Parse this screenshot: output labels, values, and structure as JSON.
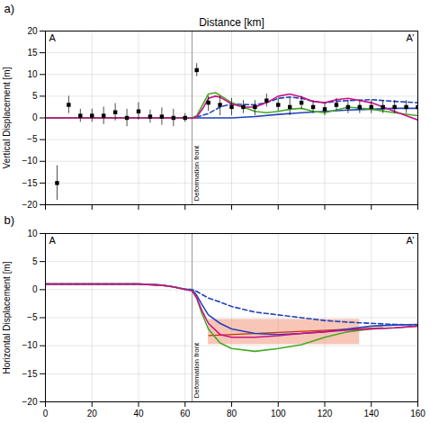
{
  "chart_data": [
    {
      "type": "line",
      "title": "Distance [km]",
      "ylabel": "Vertical Displacement [m]",
      "panel_label": "a)",
      "xlim": [
        0,
        160
      ],
      "xticks": [
        0,
        20,
        40,
        60,
        80,
        100,
        120,
        140,
        160
      ],
      "ylim": [
        -20,
        20
      ],
      "yticks": [
        -20,
        -15,
        -10,
        -5,
        0,
        5,
        10,
        15,
        20
      ],
      "grid": true,
      "tick_labels": "y",
      "reference_lines": [
        {
          "x": 63,
          "color": "#999999",
          "label": "Deformation front"
        }
      ],
      "annotations": [
        {
          "text": "A",
          "anchor": "top-left"
        },
        {
          "text": "A’",
          "anchor": "top-right"
        }
      ],
      "series": [
        {
          "type": "line",
          "color": "#2244bb",
          "line_style": "solid",
          "x": [
            0,
            10,
            20,
            30,
            40,
            50,
            60,
            63,
            65,
            70,
            80,
            90,
            100,
            110,
            120,
            130,
            140,
            150,
            160
          ],
          "values": [
            0,
            0,
            0,
            0,
            0,
            0,
            0,
            0,
            0,
            0,
            0,
            0.3,
            0.8,
            1.2,
            1.5,
            1.8,
            2.0,
            2.2,
            2.2
          ]
        },
        {
          "type": "line",
          "color": "#2244bb",
          "line_style": "dashed",
          "x": [
            0,
            10,
            20,
            30,
            40,
            50,
            60,
            63,
            65,
            70,
            75,
            80,
            90,
            95,
            100,
            105,
            110,
            115,
            120,
            125,
            130,
            140,
            150,
            160
          ],
          "values": [
            0,
            0,
            0,
            0,
            0,
            0,
            0,
            0,
            0.2,
            1.0,
            2.5,
            3.2,
            3.0,
            3.5,
            4.5,
            4.8,
            4.5,
            3.8,
            3.5,
            3.8,
            4.0,
            4.2,
            3.8,
            3.5
          ]
        },
        {
          "type": "line",
          "color": "#44aa22",
          "line_style": "solid",
          "x": [
            0,
            10,
            20,
            30,
            40,
            50,
            60,
            63,
            65,
            68,
            70,
            73,
            75,
            80,
            85,
            90,
            95,
            100,
            105,
            110,
            115,
            120,
            125,
            130,
            140,
            150,
            160
          ],
          "values": [
            0,
            0,
            0,
            0,
            0,
            0,
            0,
            0,
            0.5,
            3.5,
            5.5,
            5.8,
            5.2,
            3.5,
            2.5,
            1.5,
            1.2,
            1.5,
            2.0,
            2.2,
            1.5,
            1.2,
            1.8,
            2.5,
            2.0,
            1.2,
            0.5
          ]
        },
        {
          "type": "line",
          "color": "#cc1188",
          "line_style": "solid",
          "x": [
            0,
            10,
            20,
            30,
            40,
            50,
            60,
            63,
            65,
            68,
            70,
            73,
            75,
            80,
            85,
            90,
            95,
            100,
            105,
            110,
            115,
            120,
            125,
            130,
            140,
            150,
            160
          ],
          "values": [
            0,
            0,
            0,
            0,
            0,
            0,
            0,
            -0.1,
            0.2,
            2.5,
            4.5,
            5.0,
            4.8,
            3.2,
            2.5,
            2.5,
            3.5,
            5.0,
            5.5,
            4.8,
            3.8,
            3.5,
            4.2,
            4.5,
            3.5,
            1.5,
            -0.5
          ]
        },
        {
          "type": "scatter",
          "color": "black",
          "marker": "square",
          "x": [
            5,
            10,
            15,
            20,
            25,
            30,
            35,
            40,
            45,
            50,
            55,
            60,
            65,
            70,
            75,
            80,
            85,
            90,
            95,
            100,
            105,
            110,
            115,
            120,
            125,
            130,
            135,
            140,
            145,
            150,
            155,
            160
          ],
          "values": [
            -15,
            3,
            0.5,
            0.5,
            0.5,
            1.3,
            0,
            1.5,
            0.3,
            0.3,
            0,
            0,
            11,
            3.5,
            3.0,
            2.5,
            2.5,
            2.5,
            4.0,
            3.0,
            2.5,
            3.5,
            2.5,
            2.0,
            3.0,
            2.5,
            2.5,
            2.5,
            2.5,
            2.5,
            2.5,
            2.5
          ],
          "error_low": [
            4,
            2,
            1.5,
            1.5,
            2,
            2,
            2,
            2,
            1.5,
            2,
            2,
            1,
            1.5,
            2,
            2.5,
            2,
            1.5,
            2,
            1.5,
            1.5,
            2,
            1.5,
            1.5,
            1.5,
            1.5,
            1.5,
            1.5,
            1.5,
            1.5,
            1.5,
            1.5,
            1.5
          ],
          "error_high": [
            4,
            2,
            1.5,
            1.5,
            2,
            2,
            2,
            2,
            1.5,
            2,
            2,
            1,
            1.5,
            1.5,
            2,
            2,
            1.5,
            1.5,
            1.5,
            1.5,
            2,
            1.5,
            1.5,
            1.5,
            1.5,
            1.5,
            1.5,
            1.5,
            1.5,
            1.5,
            1.5,
            1.5
          ]
        }
      ]
    },
    {
      "type": "line",
      "ylabel": "Horizontal Displacement [m]",
      "panel_label": "b)",
      "xlim": [
        0,
        160
      ],
      "xticks": [
        0,
        20,
        40,
        60,
        80,
        100,
        120,
        140,
        160
      ],
      "ylim": [
        -20,
        10
      ],
      "yticks": [
        -20,
        -15,
        -10,
        -5,
        0,
        5,
        10
      ],
      "grid": true,
      "reference_lines": [
        {
          "x": 63,
          "color": "#999999",
          "label": "Deformation front"
        }
      ],
      "annotations": [
        {
          "text": "A",
          "anchor": "top-left"
        },
        {
          "text": "A’",
          "anchor": "top-right"
        }
      ],
      "shaded_regions": [
        {
          "x": [
            70,
            135
          ],
          "y": [
            -9.8,
            -5.3
          ],
          "color": "#f08060"
        }
      ],
      "reference_segments": [
        {
          "x": [
            70,
            145
          ],
          "y": [
            -8.2,
            -6.8
          ],
          "color": "#cc3300"
        }
      ],
      "series": [
        {
          "type": "line",
          "color": "#2244bb",
          "line_style": "solid",
          "x": [
            0,
            10,
            20,
            30,
            40,
            50,
            55,
            60,
            63,
            65,
            67,
            70,
            75,
            80,
            90,
            100,
            110,
            120,
            130,
            140,
            150,
            160
          ],
          "values": [
            1.0,
            1.0,
            1.0,
            1.0,
            1.0,
            0.8,
            0.5,
            0.1,
            0.0,
            -1.0,
            -2.5,
            -4.5,
            -6.0,
            -7.0,
            -7.8,
            -8.0,
            -7.8,
            -7.5,
            -7.0,
            -6.5,
            -6.3,
            -6.2
          ]
        },
        {
          "type": "line",
          "color": "#2244bb",
          "line_style": "dashed",
          "x": [
            0,
            10,
            20,
            30,
            40,
            50,
            55,
            60,
            63,
            65,
            67,
            70,
            75,
            80,
            90,
            100,
            110,
            120,
            130,
            140,
            150,
            160
          ],
          "values": [
            1.0,
            1.0,
            1.0,
            1.0,
            1.0,
            0.8,
            0.5,
            0.1,
            0.0,
            -0.3,
            -0.8,
            -1.5,
            -2.2,
            -3.0,
            -4.0,
            -4.5,
            -5.0,
            -5.5,
            -5.8,
            -6.0,
            -6.2,
            -6.3
          ]
        },
        {
          "type": "line",
          "color": "#44aa22",
          "line_style": "solid",
          "x": [
            0,
            10,
            20,
            30,
            40,
            50,
            55,
            60,
            63,
            65,
            67,
            70,
            75,
            80,
            90,
            100,
            110,
            120,
            130,
            140,
            150,
            160
          ],
          "values": [
            1.0,
            1.0,
            1.0,
            1.0,
            1.0,
            0.8,
            0.5,
            0.0,
            -0.2,
            -1.5,
            -4.0,
            -7.0,
            -9.5,
            -10.5,
            -11.0,
            -10.5,
            -9.8,
            -8.5,
            -7.5,
            -7.0,
            -6.8,
            -6.5
          ]
        },
        {
          "type": "line",
          "color": "#cc1188",
          "line_style": "solid",
          "x": [
            0,
            10,
            20,
            30,
            40,
            50,
            55,
            60,
            63,
            65,
            67,
            70,
            75,
            80,
            90,
            100,
            110,
            120,
            130,
            140,
            150,
            160
          ],
          "values": [
            1.0,
            1.0,
            1.0,
            1.0,
            1.0,
            0.8,
            0.5,
            0.0,
            -0.2,
            -1.5,
            -3.5,
            -6.0,
            -8.0,
            -8.5,
            -8.5,
            -8.2,
            -7.8,
            -7.5,
            -7.2,
            -7.0,
            -6.8,
            -6.5
          ]
        }
      ]
    }
  ]
}
